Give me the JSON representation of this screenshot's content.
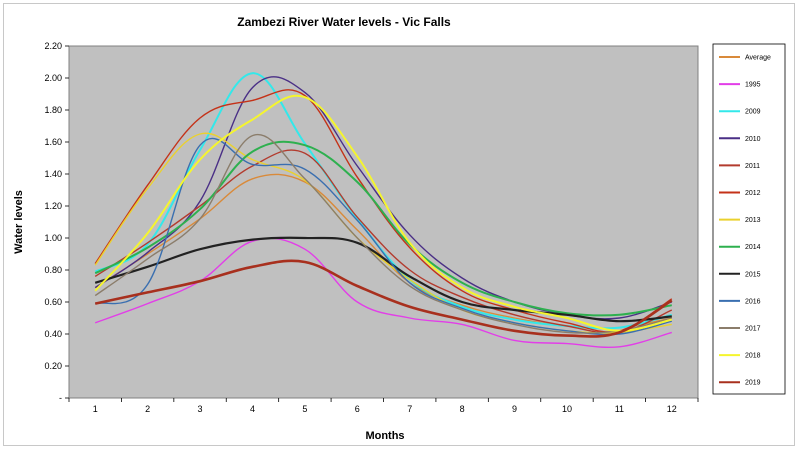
{
  "chart_data": {
    "type": "line",
    "title": "Zambezi River Water levels - Vic Falls",
    "xlabel": "Months",
    "ylabel": "Water levels",
    "x": [
      1,
      2,
      3,
      4,
      5,
      6,
      7,
      8,
      9,
      10,
      11,
      12
    ],
    "ylim": [
      0,
      2.2
    ],
    "yticks": [
      0,
      0.2,
      0.4,
      0.6,
      0.8,
      1.0,
      1.2,
      1.4,
      1.6,
      1.8,
      2.0,
      2.2
    ],
    "ytick_labels": [
      "-",
      "0.20",
      "0.40",
      "0.60",
      "0.80",
      "1.00",
      "1.20",
      "1.40",
      "1.60",
      "1.80",
      "2.00",
      "2.20"
    ],
    "grid": false,
    "legend_position": "right",
    "series": [
      {
        "name": "Average",
        "color": "#d98a3a",
        "values": [
          0.69,
          0.9,
          1.12,
          1.37,
          1.35,
          1.05,
          0.72,
          0.58,
          0.5,
          0.45,
          0.44,
          0.5
        ]
      },
      {
        "name": "1995",
        "color": "#e23ee8",
        "values": [
          0.47,
          0.59,
          0.73,
          0.98,
          0.93,
          0.6,
          0.5,
          0.46,
          0.36,
          0.34,
          0.32,
          0.41
        ]
      },
      {
        "name": "2009",
        "color": "#33e8ea",
        "values": [
          0.79,
          0.96,
          1.55,
          2.03,
          1.59,
          1.12,
          0.74,
          0.57,
          0.49,
          0.45,
          0.44,
          0.52
        ]
      },
      {
        "name": "2010",
        "color": "#4a2f86",
        "values": [
          0.69,
          0.91,
          1.23,
          1.94,
          1.91,
          1.45,
          1.02,
          0.75,
          0.6,
          0.52,
          0.5,
          0.6
        ]
      },
      {
        "name": "2011",
        "color": "#b33b2e",
        "values": [
          0.76,
          0.97,
          1.2,
          1.45,
          1.53,
          1.13,
          0.8,
          0.63,
          0.52,
          0.45,
          0.41,
          0.55
        ]
      },
      {
        "name": "2012",
        "color": "#c43218",
        "values": [
          0.84,
          1.33,
          1.75,
          1.86,
          1.89,
          1.38,
          0.94,
          0.67,
          0.55,
          0.47,
          0.42,
          0.62
        ]
      },
      {
        "name": "2013",
        "color": "#ead12e",
        "values": [
          0.83,
          1.31,
          1.65,
          1.49,
          1.36,
          1.0,
          0.74,
          0.55,
          0.47,
          0.42,
          0.41,
          0.46
        ]
      },
      {
        "name": "2014",
        "color": "#2eb04f",
        "values": [
          0.78,
          0.94,
          1.18,
          1.54,
          1.58,
          1.35,
          0.96,
          0.72,
          0.6,
          0.53,
          0.52,
          0.58
        ]
      },
      {
        "name": "2015",
        "color": "#222222",
        "values": [
          0.72,
          0.82,
          0.93,
          0.99,
          1.0,
          0.97,
          0.76,
          0.6,
          0.55,
          0.52,
          0.48,
          0.51
        ]
      },
      {
        "name": "2016",
        "color": "#3a6fb0",
        "values": [
          0.59,
          0.71,
          1.58,
          1.46,
          1.43,
          1.11,
          0.72,
          0.56,
          0.47,
          0.42,
          0.4,
          0.48
        ]
      },
      {
        "name": "2017",
        "color": "#8b7d6b",
        "values": [
          0.64,
          0.87,
          1.12,
          1.64,
          1.37,
          1.0,
          0.7,
          0.55,
          0.46,
          0.41,
          0.42,
          0.5
        ]
      },
      {
        "name": "2018",
        "color": "#f5f52e",
        "values": [
          0.67,
          1.03,
          1.49,
          1.74,
          1.88,
          1.51,
          0.97,
          0.69,
          0.57,
          0.5,
          0.42,
          0.49
        ]
      },
      {
        "name": "2019",
        "color": "#a8301e",
        "values": [
          0.59,
          0.66,
          0.73,
          0.82,
          0.85,
          0.7,
          0.57,
          0.49,
          0.42,
          0.39,
          0.41,
          0.61
        ]
      }
    ]
  }
}
